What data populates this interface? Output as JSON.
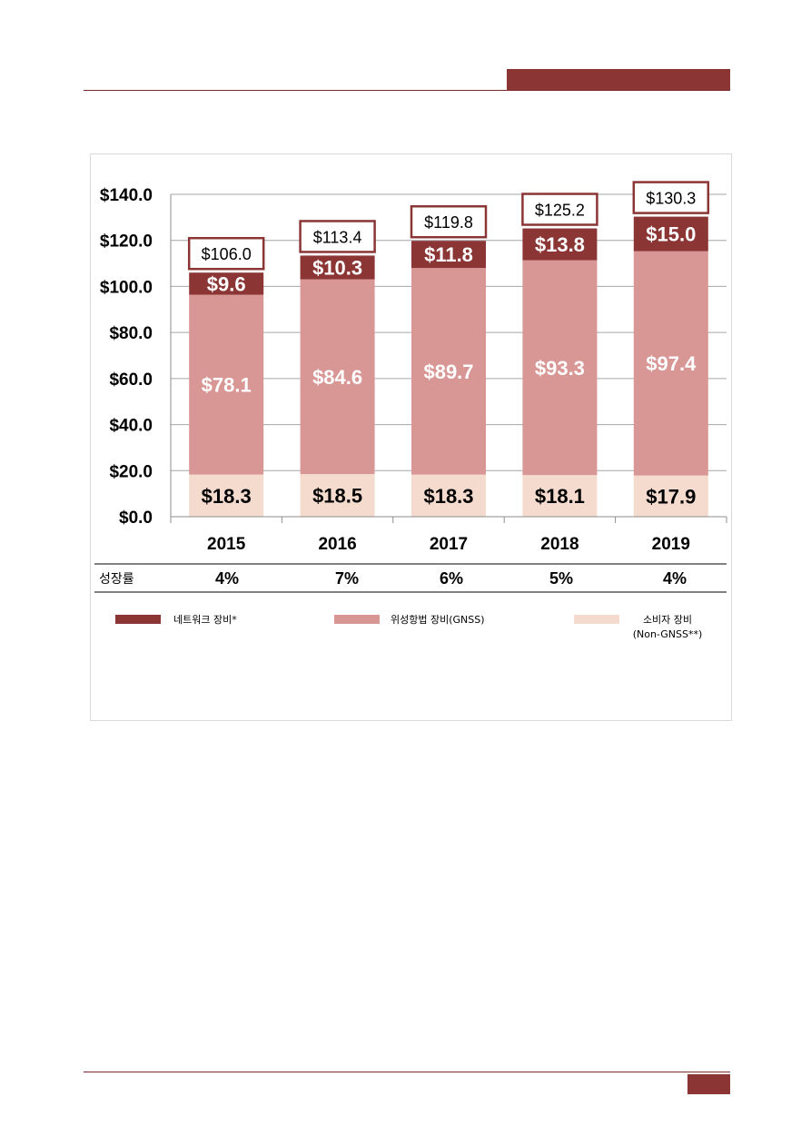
{
  "colors": {
    "accent": "#8b3535",
    "network": "#8b3535",
    "gnss": "#d89694",
    "consumer": "#f5dbcd",
    "total_box_border": "#8b3535",
    "grid": "#a6a6a6"
  },
  "chart_data": {
    "type": "bar",
    "stacked": true,
    "categories": [
      "2015",
      "2016",
      "2017",
      "2018",
      "2019"
    ],
    "series": [
      {
        "name": "소비자 장비 (Non-GNSS**)",
        "key": "consumer",
        "values": [
          18.3,
          18.5,
          18.3,
          18.1,
          17.9
        ],
        "labels": [
          "$18.3",
          "$18.5",
          "$18.3",
          "$18.1",
          "$17.9"
        ]
      },
      {
        "name": "위성항법 장비(GNSS)",
        "key": "gnss",
        "values": [
          78.1,
          84.6,
          89.7,
          93.3,
          97.4
        ],
        "labels": [
          "$78.1",
          "$84.6",
          "$89.7",
          "$93.3",
          "$97.4"
        ]
      },
      {
        "name": "네트워크 장비*",
        "key": "network",
        "values": [
          9.6,
          10.3,
          11.8,
          13.8,
          15.0
        ],
        "labels": [
          "$9.6",
          "$10.3",
          "$11.8",
          "$13.8",
          "$15.0"
        ]
      }
    ],
    "totals": [
      106.0,
      113.4,
      119.8,
      125.2,
      130.3
    ],
    "total_labels": [
      "$106.0",
      "$113.4",
      "$119.8",
      "$125.2",
      "$130.3"
    ],
    "ylim": [
      0,
      140
    ],
    "yticks": [
      0,
      20,
      40,
      60,
      80,
      100,
      120,
      140
    ],
    "ytick_labels": [
      "$0.0",
      "$20.0",
      "$40.0",
      "$60.0",
      "$80.0",
      "$100.0",
      "$120.0",
      "$140.0"
    ],
    "grid": true,
    "growth_header": "성장률",
    "growth_rates": [
      "4%",
      "7%",
      "6%",
      "5%",
      "4%"
    ],
    "legend": [
      {
        "key": "network",
        "label": "네트워크 장비*"
      },
      {
        "key": "gnss",
        "label": "위성항법 장비(GNSS)"
      },
      {
        "key": "consumer",
        "label": "소비자 장비",
        "label2": "(Non-GNSS**)"
      }
    ],
    "legend_position": "bottom"
  }
}
